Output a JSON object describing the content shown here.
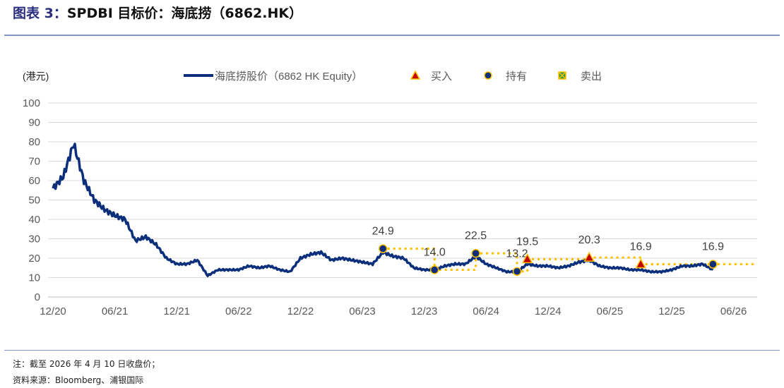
{
  "header": {
    "title_lead": "图表 3：",
    "title_main": "SPDBI 目标价：海底捞（6862.HK）"
  },
  "footer": {
    "note": "注：截至 2026 年 4 月 10 日收盘价；",
    "source": "资料来源：Bloomberg、浦银国际"
  },
  "colors": {
    "line": "#0b2f7a",
    "dotted": "#ffc000",
    "buy": "#c00000",
    "hold": "#0b2f7a",
    "sell_fill": "#2e9c45",
    "grid": "#d9d9d9",
    "rule": "#8496c4"
  },
  "chart_data": {
    "type": "line",
    "ylabel": "(港元)",
    "ylim": [
      0,
      100
    ],
    "yticks": [
      0,
      10,
      20,
      30,
      40,
      50,
      60,
      70,
      80,
      90,
      100
    ],
    "xticks": [
      "12/20",
      "06/21",
      "12/21",
      "06/22",
      "12/22",
      "06/23",
      "12/23",
      "06/24",
      "12/24",
      "06/25",
      "12/25",
      "06/26"
    ],
    "grid": true,
    "legend_position": "top",
    "legend": {
      "line": "海底捞股价（6862 HK Equity）",
      "buy": "买入",
      "hold": "持有",
      "sell": "卖出"
    },
    "series": [
      {
        "name": "海底捞股价（6862 HK Equity）",
        "x": [
          "2020-12",
          "2021-01",
          "2021-02",
          "2021-03",
          "2021-04",
          "2021-05",
          "2021-06",
          "2021-07",
          "2021-08",
          "2021-09",
          "2021-10",
          "2021-11",
          "2021-12",
          "2022-01",
          "2022-02",
          "2022-03",
          "2022-04",
          "2022-05",
          "2022-06",
          "2022-07",
          "2022-08",
          "2022-09",
          "2022-10",
          "2022-11",
          "2022-12",
          "2023-01",
          "2023-02",
          "2023-03",
          "2023-04",
          "2023-05",
          "2023-06",
          "2023-07",
          "2023-08",
          "2023-09",
          "2023-10",
          "2023-11",
          "2023-12",
          "2024-01",
          "2024-02",
          "2024-03",
          "2024-04",
          "2024-05",
          "2024-06",
          "2024-07",
          "2024-08",
          "2024-09",
          "2024-10",
          "2024-11",
          "2024-12",
          "2025-01",
          "2025-02",
          "2025-03",
          "2025-04",
          "2025-05",
          "2025-06",
          "2025-07",
          "2025-08",
          "2025-09",
          "2025-10",
          "2025-11",
          "2025-12",
          "2026-01",
          "2026-02",
          "2026-03",
          "2026-04"
        ],
        "values": [
          56,
          62,
          79,
          60,
          50,
          45,
          42,
          40,
          29,
          31,
          27,
          20,
          17,
          17,
          19,
          11,
          14,
          14,
          14,
          16,
          15,
          16,
          14,
          13,
          20,
          22,
          23,
          19,
          20,
          19,
          18,
          17,
          23,
          21,
          20,
          15,
          14,
          14,
          16,
          17,
          17,
          21,
          17,
          15,
          13,
          13,
          17,
          16,
          16,
          15,
          16,
          18,
          19,
          16,
          15,
          15,
          14,
          14,
          13,
          13,
          14,
          16,
          16,
          17,
          14
        ]
      }
    ],
    "ratings": [
      {
        "date": "2023-08",
        "type": "hold",
        "target": "24.9"
      },
      {
        "date": "2024-01",
        "type": "hold",
        "target": "14.0"
      },
      {
        "date": "2024-05",
        "type": "hold",
        "target": "22.5"
      },
      {
        "date": "2024-09",
        "type": "hold",
        "target": "13.2"
      },
      {
        "date": "2024-10",
        "type": "buy",
        "target": "19.5"
      },
      {
        "date": "2025-04",
        "type": "buy",
        "target": "20.3"
      },
      {
        "date": "2025-09",
        "type": "buy",
        "target": "16.9"
      },
      {
        "date": "2026-04",
        "type": "hold",
        "target": "16.9"
      }
    ]
  }
}
